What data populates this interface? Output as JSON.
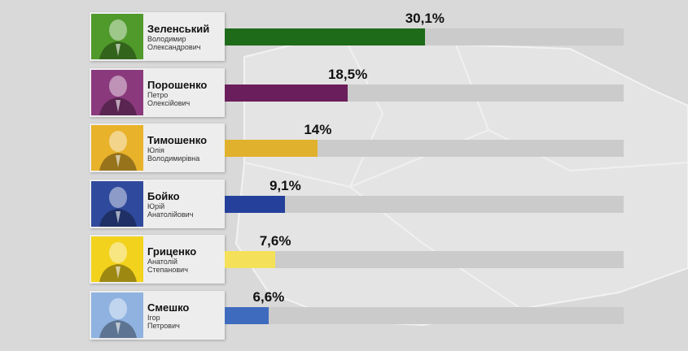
{
  "chart_data": {
    "type": "bar",
    "orientation": "horizontal",
    "xlim": [
      0,
      60
    ],
    "categories": [
      "Зеленський",
      "Порошенко",
      "Тимошенко",
      "Бойко",
      "Гриценко",
      "Смешко"
    ],
    "values": [
      30.1,
      18.5,
      14,
      9.1,
      7.6,
      6.6
    ],
    "value_labels": [
      "30,1%",
      "18,5%",
      "14%",
      "9,1%",
      "7,6%",
      "6,6%"
    ],
    "candidates": [
      {
        "surname": "Зеленський",
        "first_name": "Володимир",
        "patronymic": "Олександрович",
        "color": "#1e6b1a",
        "photo_tint": "#4f9a2a"
      },
      {
        "surname": "Порошенко",
        "first_name": "Петро",
        "patronymic": "Олексійович",
        "color": "#6b1e5c",
        "photo_tint": "#8a3a7c"
      },
      {
        "surname": "Тимошенко",
        "first_name": "Юлія",
        "patronymic": "Володимирівна",
        "color": "#e0b12c",
        "photo_tint": "#e8b22a"
      },
      {
        "surname": "Бойко",
        "first_name": "Юрій",
        "patronymic": "Анатолійович",
        "color": "#24409a",
        "photo_tint": "#2f4a9c"
      },
      {
        "surname": "Гриценко",
        "first_name": "Анатолій",
        "patronymic": "Степанович",
        "color": "#f5e05a",
        "photo_tint": "#f2d21c"
      },
      {
        "surname": "Смешко",
        "first_name": "Ігор",
        "patronymic": "Петрович",
        "color": "#3f6bbf",
        "photo_tint": "#8fb2e0"
      }
    ],
    "grid": false,
    "legend": "none"
  }
}
